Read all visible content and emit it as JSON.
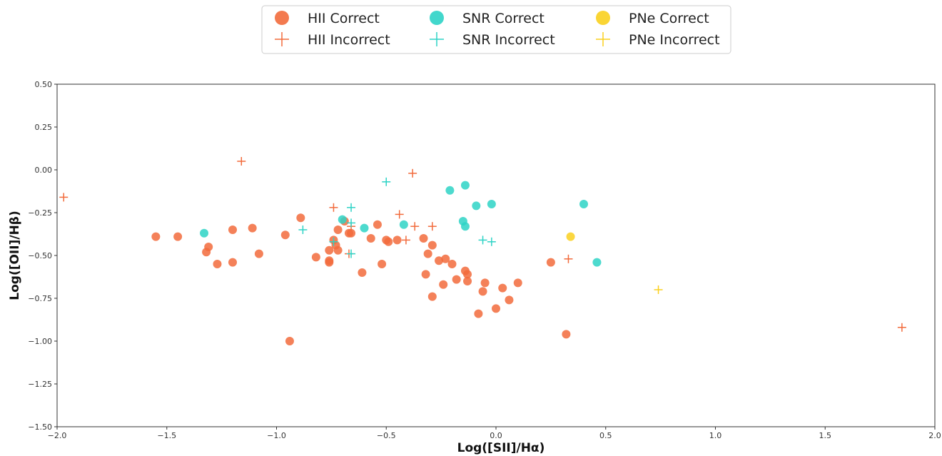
{
  "chart_data": {
    "type": "scatter",
    "title": "",
    "xlabel": "Log([SII]/Hα)",
    "ylabel": "Log([OII]/Hβ)",
    "xlim": [
      -2.0,
      2.0
    ],
    "ylim": [
      -1.5,
      0.5
    ],
    "x_ticks": [
      -2.0,
      -1.5,
      -1.0,
      -0.5,
      0.0,
      0.5,
      1.0,
      1.5,
      2.0
    ],
    "x_tick_labels": [
      "−2.0",
      "−1.5",
      "−1.0",
      "−0.5",
      "0.0",
      "0.5",
      "1.0",
      "1.5",
      "2.0"
    ],
    "y_ticks": [
      0.5,
      0.25,
      0.0,
      -0.25,
      -0.5,
      -0.75,
      -1.0,
      -1.25,
      -1.5
    ],
    "y_tick_labels": [
      "0.50",
      "0.25",
      "0.00",
      "−0.25",
      "−0.50",
      "−0.75",
      "−1.00",
      "−1.25",
      "−1.50"
    ],
    "grid": false,
    "legend_placement": "top-center, above plot",
    "series": [
      {
        "name": "HII Correct",
        "marker": "circle",
        "color": "#f26b3c",
        "points": [
          [
            -1.55,
            -0.39
          ],
          [
            -1.45,
            -0.39
          ],
          [
            -1.31,
            -0.45
          ],
          [
            -1.32,
            -0.48
          ],
          [
            -1.27,
            -0.55
          ],
          [
            -1.2,
            -0.35
          ],
          [
            -1.2,
            -0.54
          ],
          [
            -1.11,
            -0.34
          ],
          [
            -1.08,
            -0.49
          ],
          [
            -0.96,
            -0.38
          ],
          [
            -0.89,
            -0.28
          ],
          [
            -0.94,
            -1.0
          ],
          [
            -0.82,
            -0.51
          ],
          [
            -0.76,
            -0.47
          ],
          [
            -0.76,
            -0.54
          ],
          [
            -0.76,
            -0.53
          ],
          [
            -0.74,
            -0.41
          ],
          [
            -0.73,
            -0.44
          ],
          [
            -0.72,
            -0.35
          ],
          [
            -0.72,
            -0.47
          ],
          [
            -0.69,
            -0.3
          ],
          [
            -0.67,
            -0.37
          ],
          [
            -0.66,
            -0.37
          ],
          [
            -0.61,
            -0.6
          ],
          [
            -0.57,
            -0.4
          ],
          [
            -0.54,
            -0.32
          ],
          [
            -0.52,
            -0.55
          ],
          [
            -0.5,
            -0.41
          ],
          [
            -0.49,
            -0.42
          ],
          [
            -0.45,
            -0.41
          ],
          [
            -0.33,
            -0.4
          ],
          [
            -0.32,
            -0.61
          ],
          [
            -0.31,
            -0.49
          ],
          [
            -0.29,
            -0.74
          ],
          [
            -0.29,
            -0.44
          ],
          [
            -0.26,
            -0.53
          ],
          [
            -0.24,
            -0.67
          ],
          [
            -0.23,
            -0.52
          ],
          [
            -0.2,
            -0.55
          ],
          [
            -0.18,
            -0.64
          ],
          [
            -0.14,
            -0.59
          ],
          [
            -0.13,
            -0.61
          ],
          [
            -0.13,
            -0.65
          ],
          [
            -0.08,
            -0.84
          ],
          [
            -0.06,
            -0.71
          ],
          [
            -0.05,
            -0.66
          ],
          [
            0.0,
            -0.81
          ],
          [
            0.03,
            -0.69
          ],
          [
            0.06,
            -0.76
          ],
          [
            0.1,
            -0.66
          ],
          [
            0.25,
            -0.54
          ],
          [
            0.32,
            -0.96
          ]
        ]
      },
      {
        "name": "HII Incorrect",
        "marker": "plus",
        "color": "#f26b3c",
        "points": [
          [
            -1.97,
            -0.16
          ],
          [
            -1.16,
            0.05
          ],
          [
            -0.74,
            -0.22
          ],
          [
            -0.67,
            -0.49
          ],
          [
            -0.66,
            -0.33
          ],
          [
            -0.44,
            -0.26
          ],
          [
            -0.41,
            -0.41
          ],
          [
            -0.38,
            -0.02
          ],
          [
            -0.37,
            -0.33
          ],
          [
            -0.29,
            -0.33
          ],
          [
            0.33,
            -0.52
          ],
          [
            1.85,
            -0.92
          ]
        ]
      },
      {
        "name": "SNR Correct",
        "marker": "circle",
        "color": "#2ed3c6",
        "points": [
          [
            -1.33,
            -0.37
          ],
          [
            -0.7,
            -0.29
          ],
          [
            -0.6,
            -0.34
          ],
          [
            -0.42,
            -0.32
          ],
          [
            -0.21,
            -0.12
          ],
          [
            -0.15,
            -0.3
          ],
          [
            -0.14,
            -0.33
          ],
          [
            -0.14,
            -0.09
          ],
          [
            -0.09,
            -0.21
          ],
          [
            -0.02,
            -0.2
          ],
          [
            0.4,
            -0.2
          ],
          [
            0.46,
            -0.54
          ]
        ]
      },
      {
        "name": "SNR Incorrect",
        "marker": "plus",
        "color": "#2ed3c6",
        "points": [
          [
            -0.88,
            -0.35
          ],
          [
            -0.74,
            -0.42
          ],
          [
            -0.66,
            -0.22
          ],
          [
            -0.66,
            -0.31
          ],
          [
            -0.66,
            -0.49
          ],
          [
            -0.5,
            -0.07
          ],
          [
            -0.06,
            -0.41
          ],
          [
            -0.02,
            -0.42
          ]
        ]
      },
      {
        "name": "PNe Correct",
        "marker": "circle",
        "color": "#fad01e",
        "points": [
          [
            0.34,
            -0.39
          ]
        ]
      },
      {
        "name": "PNe Incorrect",
        "marker": "plus",
        "color": "#fad01e",
        "points": [
          [
            0.74,
            -0.7
          ]
        ]
      }
    ]
  }
}
